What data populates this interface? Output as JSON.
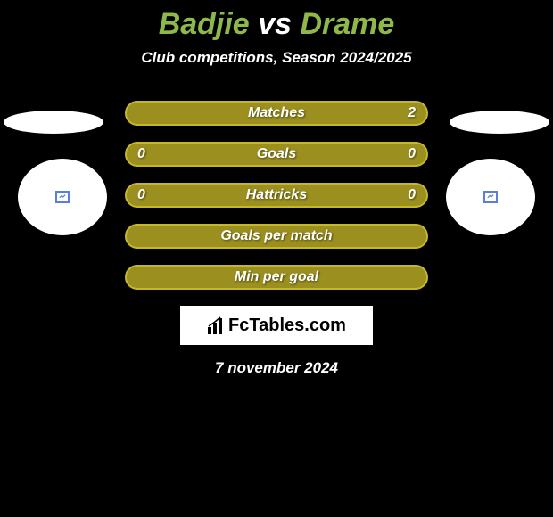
{
  "background_color": "#000000",
  "title": {
    "player1": "Badjie",
    "vs": "vs",
    "player2": "Drame",
    "player_color": "#8fb84a",
    "vs_color": "#ffffff",
    "fontsize": 34
  },
  "subtitle": {
    "text": "Club competitions, Season 2024/2025",
    "color": "#ffffff",
    "fontsize": 17
  },
  "stats": {
    "row_bg": "#9a8f1f",
    "row_border": "#c4b728",
    "label_color": "#ffffff",
    "value_color": "#ffffff",
    "rows": [
      {
        "label": "Matches",
        "left": "",
        "right": "2"
      },
      {
        "label": "Goals",
        "left": "0",
        "right": "0"
      },
      {
        "label": "Hattricks",
        "left": "0",
        "right": "0"
      },
      {
        "label": "Goals per match",
        "left": "",
        "right": ""
      },
      {
        "label": "Min per goal",
        "left": "",
        "right": ""
      }
    ]
  },
  "badges": {
    "ellipse_color": "#ffffff",
    "circle_color": "#ffffff",
    "left_badge_color": "#5a7fd4",
    "right_badge_color": "#5a7fd4"
  },
  "logo": {
    "text": "FcTables.com",
    "bg": "#ffffff",
    "text_color": "#000000"
  },
  "date": {
    "text": "7 november 2024",
    "color": "#ffffff"
  }
}
